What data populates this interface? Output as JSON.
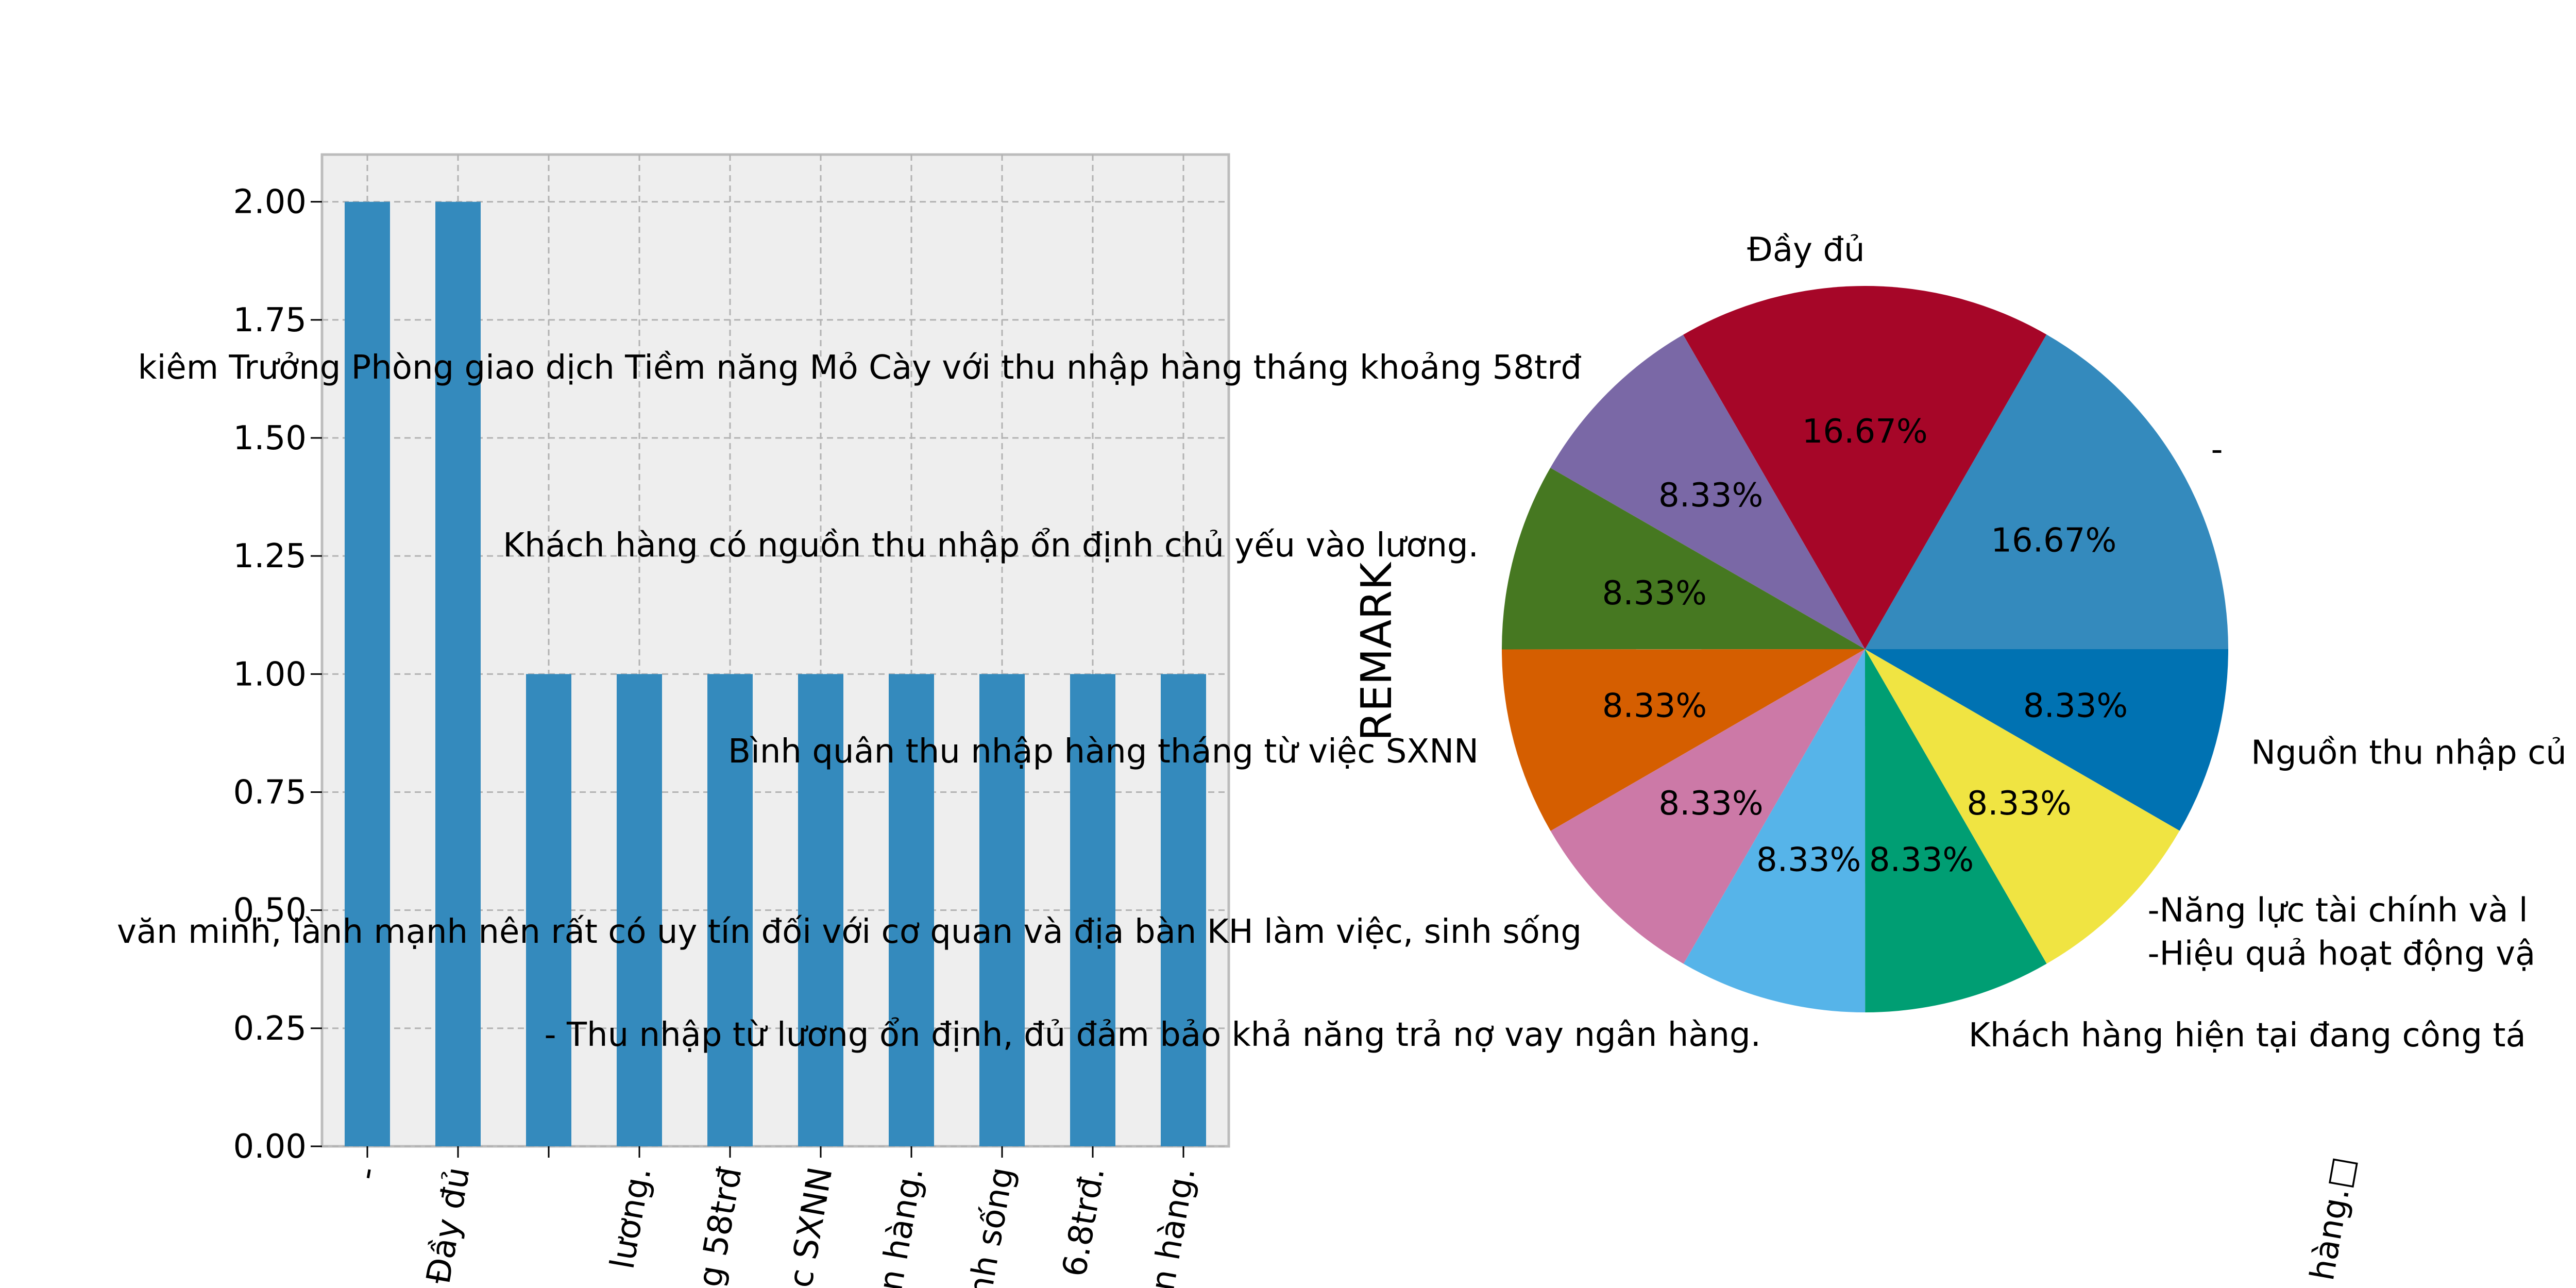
{
  "chart_data": [
    {
      "type": "bar",
      "categories": [
        "-",
        "Đầy đủ",
        "Nguồn thu nhập của khách hàng.",
        "- Thu nhập từ lương ổn định, đủ đảm bảo khả năng trả nợ vay ngân hàng.",
        "Khách hàng có nguồn thu nhập ổn định chủ yếu vào lương.",
        "Bình quân thu nhập hàng tháng từ việc SXNN",
        "Khách hàng hiện tại đang công tác tại ngân hàng.",
        "văn minh, lành mạnh nên rất có uy tín đối với cơ quan và địa bàn KH làm việc, sinh sống",
        "kiêm Trưởng Phòng giao dịch Tiềm năng Mỏ Cày với thu nhập hàng tháng khoảng 58trđ",
        "-Năng lực tài chính và -Hiệu quả hoạt động vay vốn tại ngân hàng."
      ],
      "tick_labels": [
        "-",
        "Đầy đủ",
        "",
        "lương.",
        "g 58trđ",
        "c SXNN",
        "n hàng.",
        "nh sống",
        "6.8trđ.",
        "n hàng."
      ],
      "values": [
        2,
        2,
        1,
        1,
        1,
        1,
        1,
        1,
        1,
        1
      ],
      "ylim": [
        0,
        2.1
      ],
      "yticks": [
        "0.00",
        "0.25",
        "0.50",
        "0.75",
        "1.00",
        "1.25",
        "1.50",
        "1.75",
        "2.00"
      ],
      "grid": true,
      "color": "#348ABD",
      "background": "#EEEEEE"
    },
    {
      "type": "pie",
      "ylabel": "REMARK",
      "slices": [
        {
          "label": "-",
          "pct_text": "16.67%",
          "value": 16.67,
          "color": "#348ABD"
        },
        {
          "label": "Đầy đủ",
          "pct_text": "16.67%",
          "value": 16.67,
          "color": "#A60628"
        },
        {
          "label": "",
          "pct_text": "8.33%",
          "value": 8.33,
          "color": "#7A68A6"
        },
        {
          "label": "",
          "pct_text": "8.33%",
          "value": 8.33,
          "color": "#467821"
        },
        {
          "label": "",
          "pct_text": "8.33%",
          "value": 8.33,
          "color": "#D55E00"
        },
        {
          "label": "",
          "pct_text": "8.33%",
          "value": 8.33,
          "color": "#CC79A7"
        },
        {
          "label": "",
          "pct_text": "8.33%",
          "value": 8.33,
          "color": "#56B4E9"
        },
        {
          "label": "Khách hàng hiện tại đang công tá",
          "pct_text": "8.33%",
          "value": 8.33,
          "color": "#009E73"
        },
        {
          "label": "-Năng lực tài chính và l\n-Hiệu quả hoạt động vậ",
          "pct_text": "8.33%",
          "value": 8.33,
          "color": "#F0E442"
        },
        {
          "label": "Nguồn thu nhập củ",
          "pct_text": "8.33%",
          "value": 8.33,
          "color": "#0072B2"
        }
      ]
    }
  ],
  "overflow_labels": [
    {
      "text": "kiêm Trưởng Phòng giao dịch Tiềm năng Mỏ Cày với thu nhập hàng tháng khoảng 58trđ"
    },
    {
      "text": "Khách hàng có nguồn thu nhập ổn định chủ yếu vào lương."
    },
    {
      "text": "Bình quân thu nhập hàng tháng từ việc SXNN"
    },
    {
      "text": "văn minh, lành mạnh nên rất có uy tín đối với cơ quan và địa bàn KH làm việc, sinh sống"
    },
    {
      "text": "- Thu nhập từ lương ổn định, đủ đảm bảo khả năng trả nợ vay ngân hàng."
    }
  ],
  "rotated_fragment": "hàng.□"
}
